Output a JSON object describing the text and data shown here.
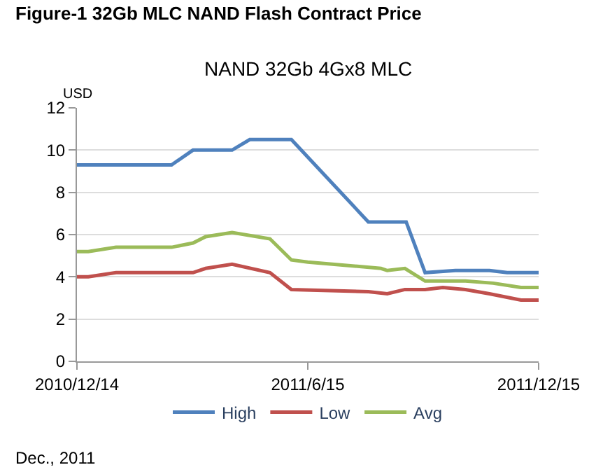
{
  "chart_data": {
    "type": "line",
    "title": "Figure-1 32Gb MLC NAND Flash Contract Price",
    "subtitle": "NAND 32Gb 4Gx8 MLC",
    "ylabel": "USD",
    "series": [
      {
        "name": "High",
        "color": "#4f81bd",
        "x": [
          "2010-12-14",
          "2011-02-27",
          "2011-03-16",
          "2011-04-16",
          "2011-04-30",
          "2011-06-02",
          "2011-08-02",
          "2011-09-01",
          "2011-09-16",
          "2011-10-10",
          "2011-11-06",
          "2011-11-20",
          "2011-12-15"
        ],
        "values": [
          9.3,
          9.3,
          10,
          10,
          10.5,
          10.5,
          6.6,
          6.6,
          4.2,
          4.3,
          4.3,
          4.2,
          4.2
        ]
      },
      {
        "name": "Low",
        "color": "#c0504d",
        "x": [
          "2010-12-14",
          "2010-12-23",
          "2011-01-14",
          "2011-03-16",
          "2011-03-26",
          "2011-04-16",
          "2011-05-16",
          "2011-06-02",
          "2011-08-02",
          "2011-08-17",
          "2011-08-31",
          "2011-09-16",
          "2011-09-30",
          "2011-10-18",
          "2011-11-06",
          "2011-12-01",
          "2011-12-15"
        ],
        "values": [
          4.0,
          4.0,
          4.2,
          4.2,
          4.4,
          4.6,
          4.2,
          3.4,
          3.3,
          3.2,
          3.4,
          3.4,
          3.5,
          3.4,
          3.2,
          2.9,
          2.9
        ]
      },
      {
        "name": "Avg",
        "color": "#9bbb59",
        "x": [
          "2010-12-14",
          "2010-12-23",
          "2011-01-14",
          "2011-02-27",
          "2011-03-16",
          "2011-03-26",
          "2011-04-16",
          "2011-05-16",
          "2011-06-02",
          "2011-06-15",
          "2011-08-12",
          "2011-08-17",
          "2011-08-31",
          "2011-09-16",
          "2011-10-18",
          "2011-11-09",
          "2011-12-01",
          "2011-12-15"
        ],
        "values": [
          5.2,
          5.2,
          5.4,
          5.4,
          5.6,
          5.9,
          6.1,
          5.8,
          4.8,
          4.7,
          4.4,
          4.3,
          4.4,
          3.8,
          3.8,
          3.7,
          3.5,
          3.5
        ]
      }
    ],
    "xlim": [
      "2010-12-14",
      "2011-12-15"
    ],
    "xticks": [
      {
        "value": "2010-12-14",
        "label": "2010/12/14"
      },
      {
        "value": "2011-06-15",
        "label": "2011/6/15"
      },
      {
        "value": "2011-12-15",
        "label": "2011/12/15"
      }
    ],
    "ylim": [
      0,
      12
    ],
    "yticks": [
      0,
      2,
      4,
      6,
      8,
      10,
      12
    ],
    "grid": "y",
    "legend": "bottom",
    "marker": "none",
    "line_style": "solid",
    "annotations": [
      "Dec., 2011"
    ]
  }
}
